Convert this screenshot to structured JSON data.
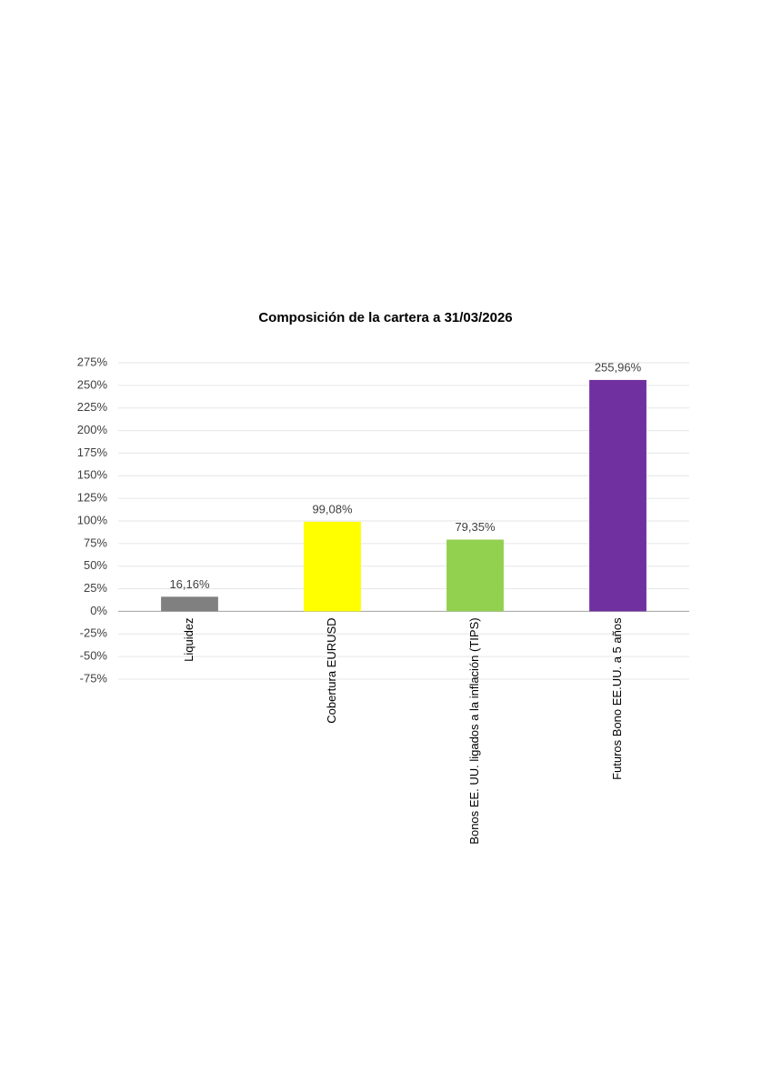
{
  "chart_data": {
    "type": "bar",
    "title": "Composición de la cartera a 31/03/2026",
    "categories": [
      "Liquidez",
      "Cobertura EURUSD",
      "Bonos EE. UU. ligados a la inflación (TIPS)",
      "Futuros Bono EE.UU. a 5 años"
    ],
    "values": [
      16.16,
      99.08,
      79.35,
      255.96
    ],
    "value_labels": [
      "16,16%",
      "99,08%",
      "79,35%",
      "255,96%"
    ],
    "colors": [
      "#808080",
      "#ffff00",
      "#92d050",
      "#7030a0"
    ],
    "ylim": [
      -75,
      275
    ],
    "yticks": [
      {
        "value": -75,
        "label": "-75%"
      },
      {
        "value": -50,
        "label": "-50%"
      },
      {
        "value": -25,
        "label": "-25%"
      },
      {
        "value": 0,
        "label": "0%"
      },
      {
        "value": 25,
        "label": "25%"
      },
      {
        "value": 50,
        "label": "50%"
      },
      {
        "value": 75,
        "label": "75%"
      },
      {
        "value": 100,
        "label": "100%"
      },
      {
        "value": 125,
        "label": "125%"
      },
      {
        "value": 150,
        "label": "150%"
      },
      {
        "value": 175,
        "label": "175%"
      },
      {
        "value": 200,
        "label": "200%"
      },
      {
        "value": 225,
        "label": "225%"
      },
      {
        "value": 250,
        "label": "250%"
      },
      {
        "value": 275,
        "label": "275%"
      }
    ],
    "grid": true
  }
}
